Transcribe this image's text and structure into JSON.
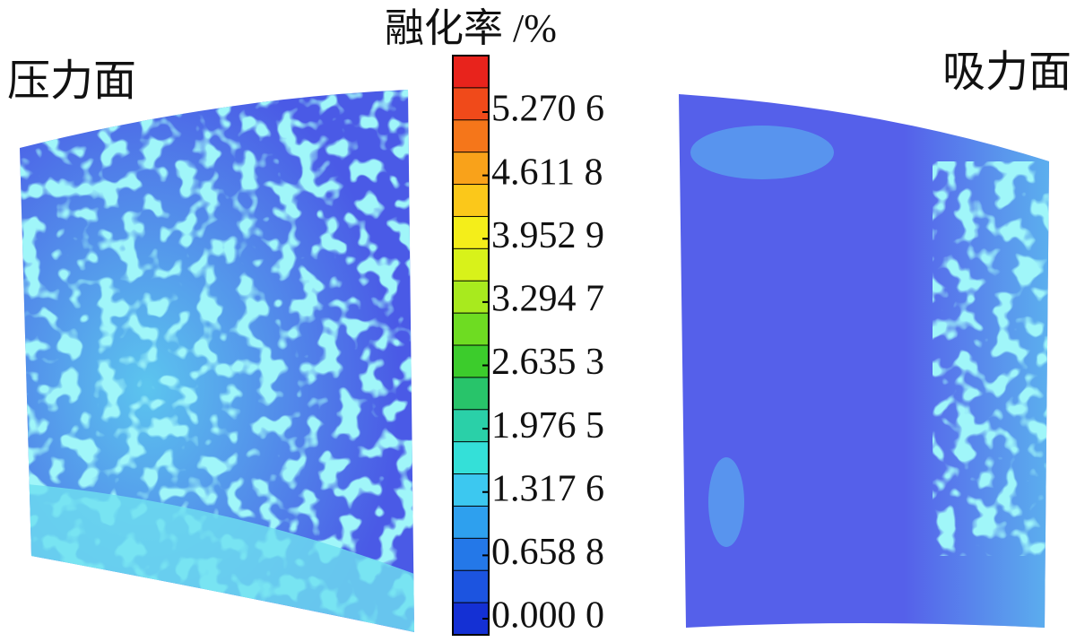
{
  "labels": {
    "pressure_side": "压力面",
    "suction_side": "吸力面"
  },
  "colorbar": {
    "title": "融化率 /%",
    "ticks": [
      "5.270 6",
      "4.611 8",
      "3.952 9",
      "3.294 7",
      "2.635 3",
      "1.976 5",
      "1.317 6",
      "0.658 8",
      "0.000 0"
    ]
  }
}
